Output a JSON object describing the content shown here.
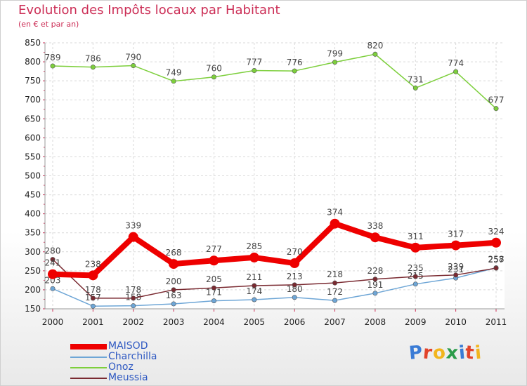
{
  "title": "Evolution des Impôts locaux par Habitant",
  "subtitle": "(en € et par an)",
  "brand": {
    "letters": [
      "P",
      "r",
      "o",
      "x",
      "i",
      "t",
      "i"
    ],
    "colors": [
      "#3a7bd5",
      "#e2432a",
      "#f2b51d",
      "#2b9c4a",
      "#3a7bd5",
      "#e2432a",
      "#f2b51d"
    ]
  },
  "chart_data": {
    "type": "line",
    "title": "Evolution des Impôts locaux par Habitant",
    "subtitle": "(en € et par an)",
    "x": [
      "2000",
      "2001",
      "2002",
      "2003",
      "2004",
      "2005",
      "2006",
      "2007",
      "2008",
      "2009",
      "2010",
      "2011"
    ],
    "ylim": [
      150,
      850
    ],
    "yticks": [
      "150",
      "200",
      "250",
      "300",
      "350",
      "400",
      "450",
      "500",
      "550",
      "600",
      "650",
      "700",
      "750",
      "800",
      "850"
    ],
    "grid": true,
    "legend_position": "bottom-left",
    "series": [
      {
        "name": "Onoz",
        "color": "#7dcf3c",
        "values": [
          789,
          786,
          790,
          749,
          760,
          777,
          776,
          799,
          820,
          731,
          774,
          677
        ],
        "labels": [
          "789",
          "786",
          "790",
          "749",
          "760",
          "777",
          "776",
          "799",
          "820",
          "731",
          "774",
          "677"
        ]
      },
      {
        "name": "Charchilla",
        "color": "#6ea6d6",
        "values": [
          203,
          157,
          158,
          163,
          171,
          174,
          180,
          172,
          191,
          215,
          231,
          258
        ],
        "labels": [
          "203",
          "157",
          "158",
          "163",
          "171",
          "174",
          "180",
          "172",
          "191",
          "215",
          "231",
          "258"
        ]
      },
      {
        "name": "Meussia",
        "color": "#7a2a31",
        "values": [
          280,
          178,
          178,
          200,
          205,
          211,
          213,
          218,
          228,
          235,
          239,
          257
        ],
        "labels": [
          "280",
          "178",
          "178",
          "200",
          "205",
          "211",
          "213",
          "218",
          "228",
          "235",
          "239",
          "257"
        ]
      },
      {
        "name": "MAISOD",
        "color": "#ee0000",
        "values": [
          241,
          238,
          339,
          268,
          277,
          285,
          270,
          374,
          338,
          311,
          317,
          324
        ],
        "labels": [
          "241",
          "238",
          "339",
          "268",
          "277",
          "285",
          "270",
          "374",
          "338",
          "311",
          "317",
          "324"
        ]
      }
    ],
    "legend": [
      "MAISOD",
      "Charchilla",
      "Onoz",
      "Meussia"
    ]
  }
}
